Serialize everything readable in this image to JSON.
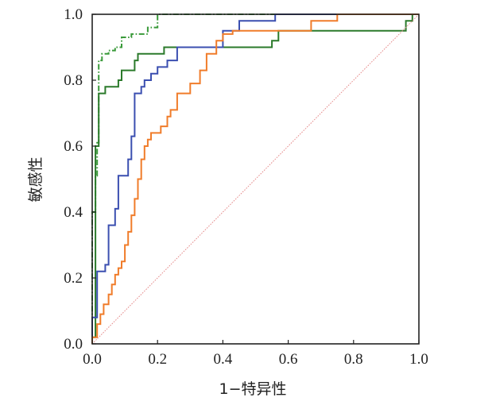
{
  "chart_data": {
    "type": "line",
    "title": "",
    "xlabel": "1−特异性",
    "ylabel": "敏感性",
    "xlim": [
      0,
      1
    ],
    "ylim": [
      0,
      1
    ],
    "x_ticks": [
      "0.0",
      "0.2",
      "0.4",
      "0.6",
      "0.8",
      "1.0"
    ],
    "y_ticks": [
      "0.0",
      "0.2",
      "0.4",
      "0.6",
      "0.8",
      "1.0"
    ],
    "grid": false,
    "legend": "none",
    "series": [
      {
        "color": "#3a9a3a",
        "style": "dashdot",
        "points": [
          [
            0,
            0
          ],
          [
            0,
            0.4
          ],
          [
            0.01,
            0.4
          ],
          [
            0.01,
            0.51
          ],
          [
            0.015,
            0.51
          ],
          [
            0.015,
            0.61
          ],
          [
            0.02,
            0.61
          ],
          [
            0.02,
            0.86
          ],
          [
            0.03,
            0.86
          ],
          [
            0.03,
            0.88
          ],
          [
            0.05,
            0.88
          ],
          [
            0.05,
            0.89
          ],
          [
            0.07,
            0.89
          ],
          [
            0.07,
            0.9
          ],
          [
            0.09,
            0.9
          ],
          [
            0.09,
            0.93
          ],
          [
            0.12,
            0.93
          ],
          [
            0.12,
            0.94
          ],
          [
            0.17,
            0.94
          ],
          [
            0.17,
            0.96
          ],
          [
            0.2,
            0.96
          ],
          [
            0.2,
            1.0
          ],
          [
            1.0,
            1.0
          ]
        ]
      },
      {
        "color": "#2b7a2b",
        "style": "solid",
        "points": [
          [
            0,
            0
          ],
          [
            0,
            0.02
          ],
          [
            0.01,
            0.02
          ],
          [
            0.01,
            0.6
          ],
          [
            0.02,
            0.6
          ],
          [
            0.02,
            0.76
          ],
          [
            0.04,
            0.76
          ],
          [
            0.04,
            0.78
          ],
          [
            0.08,
            0.78
          ],
          [
            0.08,
            0.8
          ],
          [
            0.09,
            0.8
          ],
          [
            0.09,
            0.83
          ],
          [
            0.13,
            0.83
          ],
          [
            0.13,
            0.86
          ],
          [
            0.14,
            0.86
          ],
          [
            0.14,
            0.88
          ],
          [
            0.22,
            0.88
          ],
          [
            0.22,
            0.9
          ],
          [
            0.55,
            0.9
          ],
          [
            0.55,
            0.92
          ],
          [
            0.57,
            0.92
          ],
          [
            0.57,
            0.95
          ],
          [
            0.96,
            0.95
          ],
          [
            0.96,
            0.98
          ],
          [
            0.98,
            0.98
          ],
          [
            0.98,
            1.0
          ],
          [
            1.0,
            1.0
          ]
        ]
      },
      {
        "color": "#3b4fb0",
        "style": "solid",
        "points": [
          [
            0,
            0
          ],
          [
            0,
            0.08
          ],
          [
            0.015,
            0.08
          ],
          [
            0.015,
            0.22
          ],
          [
            0.04,
            0.22
          ],
          [
            0.04,
            0.24
          ],
          [
            0.05,
            0.24
          ],
          [
            0.05,
            0.36
          ],
          [
            0.07,
            0.36
          ],
          [
            0.07,
            0.41
          ],
          [
            0.08,
            0.41
          ],
          [
            0.08,
            0.51
          ],
          [
            0.11,
            0.51
          ],
          [
            0.11,
            0.56
          ],
          [
            0.12,
            0.56
          ],
          [
            0.12,
            0.63
          ],
          [
            0.13,
            0.63
          ],
          [
            0.13,
            0.76
          ],
          [
            0.15,
            0.76
          ],
          [
            0.15,
            0.78
          ],
          [
            0.16,
            0.78
          ],
          [
            0.16,
            0.8
          ],
          [
            0.18,
            0.8
          ],
          [
            0.18,
            0.82
          ],
          [
            0.2,
            0.82
          ],
          [
            0.2,
            0.84
          ],
          [
            0.23,
            0.84
          ],
          [
            0.23,
            0.86
          ],
          [
            0.26,
            0.86
          ],
          [
            0.26,
            0.9
          ],
          [
            0.4,
            0.9
          ],
          [
            0.4,
            0.95
          ],
          [
            0.45,
            0.95
          ],
          [
            0.45,
            0.98
          ],
          [
            0.56,
            0.98
          ],
          [
            0.56,
            1.0
          ],
          [
            1.0,
            1.0
          ]
        ]
      },
      {
        "color": "#f07c2a",
        "style": "solid",
        "points": [
          [
            0,
            0
          ],
          [
            0,
            0.02
          ],
          [
            0.015,
            0.02
          ],
          [
            0.015,
            0.06
          ],
          [
            0.025,
            0.06
          ],
          [
            0.025,
            0.09
          ],
          [
            0.035,
            0.09
          ],
          [
            0.035,
            0.12
          ],
          [
            0.05,
            0.12
          ],
          [
            0.05,
            0.15
          ],
          [
            0.06,
            0.15
          ],
          [
            0.06,
            0.18
          ],
          [
            0.07,
            0.18
          ],
          [
            0.07,
            0.21
          ],
          [
            0.08,
            0.21
          ],
          [
            0.08,
            0.23
          ],
          [
            0.09,
            0.23
          ],
          [
            0.09,
            0.25
          ],
          [
            0.1,
            0.25
          ],
          [
            0.1,
            0.3
          ],
          [
            0.11,
            0.3
          ],
          [
            0.11,
            0.34
          ],
          [
            0.12,
            0.34
          ],
          [
            0.12,
            0.39
          ],
          [
            0.13,
            0.39
          ],
          [
            0.13,
            0.44
          ],
          [
            0.14,
            0.44
          ],
          [
            0.14,
            0.5
          ],
          [
            0.15,
            0.5
          ],
          [
            0.15,
            0.56
          ],
          [
            0.16,
            0.56
          ],
          [
            0.16,
            0.6
          ],
          [
            0.17,
            0.6
          ],
          [
            0.17,
            0.62
          ],
          [
            0.18,
            0.62
          ],
          [
            0.18,
            0.64
          ],
          [
            0.21,
            0.64
          ],
          [
            0.21,
            0.66
          ],
          [
            0.23,
            0.66
          ],
          [
            0.23,
            0.69
          ],
          [
            0.24,
            0.69
          ],
          [
            0.24,
            0.71
          ],
          [
            0.26,
            0.71
          ],
          [
            0.26,
            0.76
          ],
          [
            0.3,
            0.76
          ],
          [
            0.3,
            0.79
          ],
          [
            0.33,
            0.79
          ],
          [
            0.33,
            0.83
          ],
          [
            0.35,
            0.83
          ],
          [
            0.35,
            0.88
          ],
          [
            0.38,
            0.88
          ],
          [
            0.38,
            0.92
          ],
          [
            0.4,
            0.92
          ],
          [
            0.4,
            0.94
          ],
          [
            0.43,
            0.94
          ],
          [
            0.43,
            0.95
          ],
          [
            0.67,
            0.95
          ],
          [
            0.67,
            0.98
          ],
          [
            0.75,
            0.98
          ],
          [
            0.75,
            1.0
          ],
          [
            1.0,
            1.0
          ]
        ]
      },
      {
        "color": "#e58a8a",
        "style": "dotted",
        "points": [
          [
            0,
            0
          ],
          [
            1,
            1
          ]
        ]
      }
    ]
  }
}
